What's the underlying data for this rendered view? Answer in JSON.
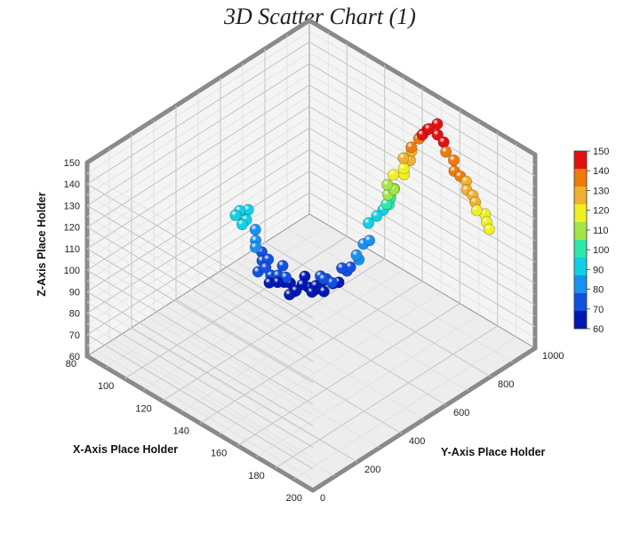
{
  "chart_data": {
    "type": "scatter3d",
    "title": "3D Scatter Chart (1)",
    "xlabel": "X-Axis Place Holder",
    "ylabel": "Y-Axis Place Holder",
    "zlabel": "Z-Axis Place Holder",
    "xlim": [
      80,
      200
    ],
    "ylim": [
      0,
      1000
    ],
    "zlim": [
      60,
      150
    ],
    "xticks": [
      "80",
      "100",
      "120",
      "140",
      "160",
      "180",
      "200"
    ],
    "yticks": [
      "0",
      "200",
      "400",
      "600",
      "800",
      "1000"
    ],
    "zticks": [
      "60",
      "70",
      "80",
      "90",
      "100",
      "110",
      "120",
      "130",
      "140",
      "150"
    ],
    "colorbar": {
      "ticks": [
        "60",
        "70",
        "80",
        "90",
        "100",
        "110",
        "120",
        "130",
        "140",
        "150"
      ],
      "colors": [
        "#0018b4",
        "#1250e0",
        "#1a90f0",
        "#10d0e6",
        "#30e8a8",
        "#a4e446",
        "#f0f020",
        "#f0b030",
        "#ee7c0c",
        "#e41010"
      ]
    },
    "points": [
      {
        "x": 88,
        "y": 600,
        "z": 90
      },
      {
        "x": 89,
        "y": 610,
        "z": 92
      },
      {
        "x": 90,
        "y": 620,
        "z": 88
      },
      {
        "x": 91,
        "y": 605,
        "z": 87
      },
      {
        "x": 92,
        "y": 615,
        "z": 89
      },
      {
        "x": 90,
        "y": 640,
        "z": 91
      },
      {
        "x": 95,
        "y": 630,
        "z": 85
      },
      {
        "x": 97,
        "y": 615,
        "z": 82
      },
      {
        "x": 98,
        "y": 605,
        "z": 80
      },
      {
        "x": 99,
        "y": 625,
        "z": 77
      },
      {
        "x": 101,
        "y": 610,
        "z": 75
      },
      {
        "x": 100,
        "y": 600,
        "z": 70
      },
      {
        "x": 103,
        "y": 620,
        "z": 76
      },
      {
        "x": 104,
        "y": 600,
        "z": 74
      },
      {
        "x": 105,
        "y": 615,
        "z": 70
      },
      {
        "x": 106,
        "y": 600,
        "z": 68
      },
      {
        "x": 107,
        "y": 630,
        "z": 70
      },
      {
        "x": 108,
        "y": 620,
        "z": 68
      },
      {
        "x": 106,
        "y": 660,
        "z": 72
      },
      {
        "x": 108,
        "y": 650,
        "z": 66
      },
      {
        "x": 110,
        "y": 640,
        "z": 70
      },
      {
        "x": 110,
        "y": 660,
        "z": 66
      },
      {
        "x": 111,
        "y": 670,
        "z": 62
      },
      {
        "x": 112,
        "y": 640,
        "z": 63
      },
      {
        "x": 113,
        "y": 660,
        "z": 64
      },
      {
        "x": 113,
        "y": 700,
        "z": 68
      },
      {
        "x": 114,
        "y": 680,
        "z": 66
      },
      {
        "x": 115,
        "y": 700,
        "z": 64
      },
      {
        "x": 116,
        "y": 720,
        "z": 62
      },
      {
        "x": 118,
        "y": 690,
        "z": 64
      },
      {
        "x": 118,
        "y": 740,
        "z": 66
      },
      {
        "x": 119,
        "y": 720,
        "z": 70
      },
      {
        "x": 120,
        "y": 690,
        "z": 68
      },
      {
        "x": 121,
        "y": 730,
        "z": 69
      },
      {
        "x": 122,
        "y": 710,
        "z": 65
      },
      {
        "x": 122,
        "y": 750,
        "z": 66
      },
      {
        "x": 123,
        "y": 700,
        "z": 72
      },
      {
        "x": 124,
        "y": 760,
        "z": 67
      },
      {
        "x": 125,
        "y": 720,
        "z": 70
      },
      {
        "x": 126,
        "y": 780,
        "z": 72
      },
      {
        "x": 128,
        "y": 740,
        "z": 77
      },
      {
        "x": 129,
        "y": 770,
        "z": 76
      },
      {
        "x": 130,
        "y": 800,
        "z": 78
      },
      {
        "x": 131,
        "y": 780,
        "z": 82
      },
      {
        "x": 130,
        "y": 820,
        "z": 84
      },
      {
        "x": 132,
        "y": 830,
        "z": 86
      },
      {
        "x": 128,
        "y": 860,
        "z": 90
      },
      {
        "x": 130,
        "y": 880,
        "z": 93
      },
      {
        "x": 131,
        "y": 900,
        "z": 95
      },
      {
        "x": 133,
        "y": 910,
        "z": 98
      },
      {
        "x": 134,
        "y": 890,
        "z": 100
      },
      {
        "x": 135,
        "y": 900,
        "z": 103
      },
      {
        "x": 136,
        "y": 880,
        "z": 106
      },
      {
        "x": 137,
        "y": 900,
        "z": 108
      },
      {
        "x": 139,
        "y": 880,
        "z": 110
      },
      {
        "x": 138,
        "y": 860,
        "z": 113
      },
      {
        "x": 141,
        "y": 910,
        "z": 116
      },
      {
        "x": 140,
        "y": 870,
        "z": 118
      },
      {
        "x": 142,
        "y": 900,
        "z": 120
      },
      {
        "x": 143,
        "y": 920,
        "z": 123
      },
      {
        "x": 143,
        "y": 890,
        "z": 126
      },
      {
        "x": 145,
        "y": 910,
        "z": 129
      },
      {
        "x": 146,
        "y": 900,
        "z": 132
      },
      {
        "x": 148,
        "y": 920,
        "z": 136
      },
      {
        "x": 150,
        "y": 900,
        "z": 138
      },
      {
        "x": 151,
        "y": 910,
        "z": 140
      },
      {
        "x": 153,
        "y": 890,
        "z": 142
      },
      {
        "x": 154,
        "y": 905,
        "z": 144
      },
      {
        "x": 156,
        "y": 895,
        "z": 146
      },
      {
        "x": 158,
        "y": 915,
        "z": 148
      },
      {
        "x": 160,
        "y": 900,
        "z": 145
      },
      {
        "x": 162,
        "y": 910,
        "z": 142
      },
      {
        "x": 165,
        "y": 895,
        "z": 140
      },
      {
        "x": 168,
        "y": 905,
        "z": 137
      },
      {
        "x": 170,
        "y": 890,
        "z": 134
      },
      {
        "x": 172,
        "y": 900,
        "z": 132
      },
      {
        "x": 174,
        "y": 910,
        "z": 130
      },
      {
        "x": 176,
        "y": 895,
        "z": 128
      },
      {
        "x": 178,
        "y": 905,
        "z": 126
      },
      {
        "x": 180,
        "y": 900,
        "z": 124
      },
      {
        "x": 182,
        "y": 890,
        "z": 122
      },
      {
        "x": 184,
        "y": 910,
        "z": 120
      },
      {
        "x": 186,
        "y": 900,
        "z": 118
      },
      {
        "x": 188,
        "y": 895,
        "z": 116
      }
    ]
  }
}
